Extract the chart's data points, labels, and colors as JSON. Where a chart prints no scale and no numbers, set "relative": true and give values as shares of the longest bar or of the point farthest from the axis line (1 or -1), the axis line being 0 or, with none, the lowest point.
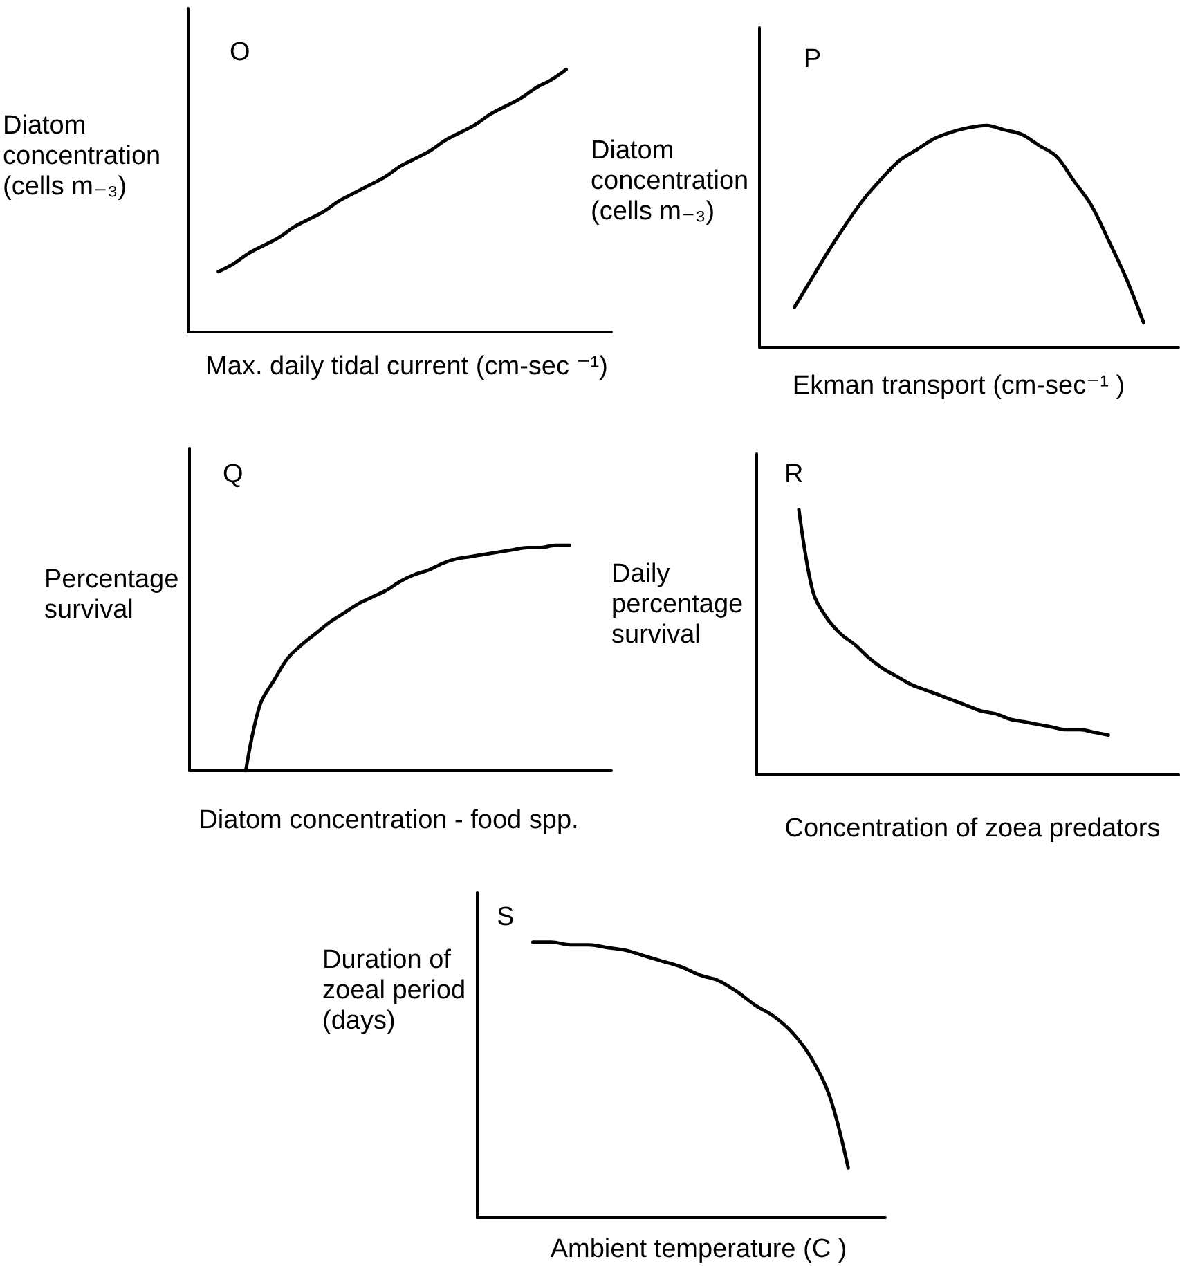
{
  "chart_data": [
    {
      "type": "line",
      "title": "O",
      "ylabel": "Diatom concentration (cells m₋₃)",
      "xlabel": "Max. daily tidal current (cm-sec ⁻¹)",
      "relative": true,
      "tick_labels": false,
      "color": "#000000",
      "categories": [
        null,
        null,
        null,
        null,
        null,
        null,
        null,
        null,
        null,
        null,
        null,
        null,
        null,
        null,
        null,
        null,
        null,
        null,
        null,
        null,
        null,
        null,
        null,
        null,
        null,
        null,
        null,
        null,
        null
      ],
      "values": [
        null,
        null,
        0.23,
        0.26,
        0.3,
        0.33,
        0.36,
        0.4,
        0.43,
        0.46,
        0.5,
        0.53,
        0.56,
        0.59,
        0.63,
        0.66,
        0.69,
        0.73,
        0.76,
        0.79,
        0.83,
        0.86,
        0.89,
        0.93,
        0.96,
        1,
        null,
        null,
        null
      ]
    },
    {
      "type": "line",
      "title": "P",
      "ylabel": "Diatom concentration (cells m₋₃)",
      "xlabel": "Ekman transport (cm-sec⁻¹ )",
      "relative": true,
      "tick_labels": false,
      "color": "#000000",
      "categories": [
        null,
        null,
        null,
        null,
        null,
        null,
        null,
        null,
        null,
        null,
        null,
        null,
        null,
        null,
        null,
        null,
        null,
        null,
        null,
        null,
        null,
        null,
        null,
        null,
        null
      ],
      "values": [
        null,
        null,
        0.18,
        0.31,
        0.44,
        0.56,
        0.67,
        0.76,
        0.84,
        0.89,
        0.94,
        0.97,
        0.99,
        1,
        0.98,
        0.96,
        0.91,
        0.86,
        0.75,
        0.64,
        0.48,
        0.31,
        0.11,
        null,
        null
      ]
    },
    {
      "type": "line",
      "title": "Q",
      "ylabel": "Percentage survival",
      "xlabel": "Diatom concentration - food spp.",
      "relative": true,
      "tick_labels": false,
      "color": "#000000",
      "categories": [
        null,
        null,
        null,
        null,
        null,
        null,
        null,
        null,
        null,
        null,
        null,
        null,
        null,
        null,
        null,
        null,
        null,
        null,
        null,
        null,
        null,
        null,
        null,
        null,
        null,
        null,
        null,
        null,
        null,
        null,
        null
      ],
      "values": [
        null,
        null,
        null,
        null,
        0,
        0.29,
        0.4,
        0.5,
        0.56,
        0.61,
        0.66,
        0.7,
        0.74,
        0.77,
        0.8,
        0.84,
        0.87,
        0.89,
        0.92,
        0.94,
        0.95,
        0.96,
        0.97,
        0.98,
        0.99,
        0.99,
        1,
        1,
        null,
        null,
        null
      ]
    },
    {
      "type": "line",
      "title": "R",
      "ylabel": "Daily percentage survival",
      "xlabel": "Concentration of zoea predators",
      "relative": true,
      "tick_labels": false,
      "color": "#000000",
      "categories": [
        null,
        null,
        null,
        null,
        null,
        null,
        null,
        null,
        null,
        null,
        null,
        null,
        null,
        null,
        null,
        null,
        null,
        null,
        null,
        null,
        null,
        null,
        null,
        null,
        null,
        null,
        null,
        null,
        null,
        null,
        null
      ],
      "values": [
        null,
        null,
        null,
        1,
        0.69,
        0.59,
        0.53,
        0.49,
        0.44,
        0.4,
        0.37,
        0.34,
        0.32,
        0.3,
        0.28,
        0.26,
        0.24,
        0.23,
        0.21,
        0.2,
        0.19,
        0.18,
        0.17,
        0.17,
        0.16,
        0.15,
        null,
        null,
        null,
        null,
        null
      ]
    },
    {
      "type": "line",
      "title": "S",
      "ylabel": "Duration of zoeal period (days)",
      "xlabel": "Ambient temperature (C )",
      "relative": true,
      "tick_labels": false,
      "color": "#000000",
      "categories": [
        null,
        null,
        null,
        null,
        null,
        null,
        null,
        null,
        null,
        null,
        null,
        null,
        null,
        null,
        null,
        null,
        null,
        null,
        null,
        null,
        null,
        null,
        null
      ],
      "values": [
        null,
        null,
        null,
        1,
        1,
        0.99,
        0.99,
        0.98,
        0.97,
        0.95,
        0.93,
        0.91,
        0.88,
        0.86,
        0.82,
        0.77,
        0.73,
        0.67,
        0.58,
        0.44,
        0.18,
        null,
        null
      ]
    }
  ]
}
